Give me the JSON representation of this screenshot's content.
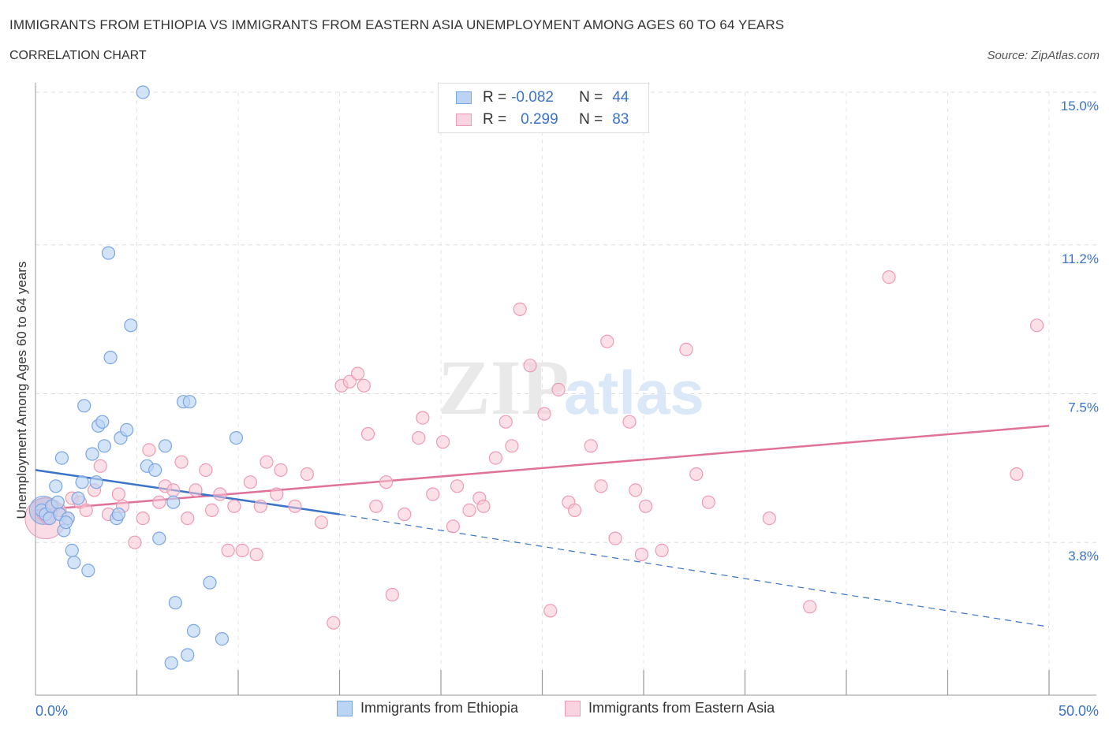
{
  "header": {
    "title": "IMMIGRANTS FROM ETHIOPIA VS IMMIGRANTS FROM EASTERN ASIA UNEMPLOYMENT AMONG AGES 60 TO 64 YEARS",
    "subtitle": "CORRELATION CHART",
    "source": "Source: ZipAtlas.com"
  },
  "legend": {
    "rows": [
      {
        "r_label": "R =",
        "r_value": "-0.082",
        "n_label": "N =",
        "n_value": "44",
        "color": "#a9c8f0"
      },
      {
        "r_label": "R =",
        "r_value": "0.299",
        "n_label": "N =",
        "n_value": "83",
        "color": "#f5b8cb"
      }
    ]
  },
  "bottom_legend": {
    "series1": "Immigrants from Ethiopia",
    "series2": "Immigrants from Eastern Asia"
  },
  "watermark": {
    "zip": "ZIP",
    "atlas": "atlas"
  },
  "chart_data": {
    "type": "scatter",
    "title": "IMMIGRANTS FROM ETHIOPIA VS IMMIGRANTS FROM EASTERN ASIA UNEMPLOYMENT AMONG AGES 60 TO 64 YEARS",
    "xlabel": "",
    "ylabel": "Unemployment Among Ages 60 to 64 years",
    "xlim": [
      0,
      50
    ],
    "ylim": [
      0,
      15
    ],
    "x_tick_labels": [
      "0.0%",
      "50.0%"
    ],
    "y_ticks": [
      3.8,
      7.5,
      11.2,
      15.0
    ],
    "y_tick_labels": [
      "3.8%",
      "7.5%",
      "11.2%",
      "15.0%"
    ],
    "grid": true,
    "colors": {
      "ethiopia": "#7aa6e3",
      "eastern_asia": "#ee9ab5",
      "ethiopia_line": "#3a73c9",
      "eastern_asia_line": "#e0729a",
      "tick_label": "#3a73c9"
    },
    "series": [
      {
        "name": "Immigrants from Ethiopia",
        "points": [
          [
            0.3,
            4.6
          ],
          [
            0.5,
            4.5
          ],
          [
            0.7,
            4.4
          ],
          [
            0.8,
            4.7
          ],
          [
            1.0,
            5.2
          ],
          [
            1.1,
            4.8
          ],
          [
            1.2,
            4.5
          ],
          [
            1.3,
            5.9
          ],
          [
            1.4,
            4.1
          ],
          [
            1.6,
            4.4
          ],
          [
            1.8,
            3.6
          ],
          [
            1.9,
            3.3
          ],
          [
            2.1,
            4.9
          ],
          [
            2.3,
            5.3
          ],
          [
            2.4,
            7.2
          ],
          [
            2.6,
            3.1
          ],
          [
            2.8,
            6.0
          ],
          [
            3.0,
            5.3
          ],
          [
            3.1,
            6.7
          ],
          [
            3.3,
            6.8
          ],
          [
            3.4,
            6.2
          ],
          [
            3.6,
            11.0
          ],
          [
            3.7,
            8.4
          ],
          [
            4.0,
            4.4
          ],
          [
            4.2,
            6.4
          ],
          [
            4.5,
            6.6
          ],
          [
            4.7,
            9.2
          ],
          [
            5.3,
            15.0
          ],
          [
            5.5,
            5.7
          ],
          [
            5.9,
            5.6
          ],
          [
            6.1,
            3.9
          ],
          [
            6.4,
            6.2
          ],
          [
            6.7,
            0.8
          ],
          [
            6.8,
            4.8
          ],
          [
            6.9,
            2.3
          ],
          [
            7.3,
            7.3
          ],
          [
            7.5,
            1.0
          ],
          [
            7.6,
            7.3
          ],
          [
            7.8,
            1.6
          ],
          [
            8.6,
            2.8
          ],
          [
            9.2,
            1.4
          ],
          [
            9.9,
            6.4
          ],
          [
            1.5,
            4.3
          ],
          [
            4.1,
            4.5
          ]
        ],
        "trend": {
          "x": [
            0,
            15
          ],
          "y": [
            5.6,
            4.5
          ]
        },
        "trend_extension": {
          "x": [
            15,
            50
          ],
          "y": [
            4.5,
            1.7
          ]
        }
      },
      {
        "name": "Immigrants from Eastern Asia",
        "points": [
          [
            0.4,
            4.5
          ],
          [
            0.6,
            4.4
          ],
          [
            0.9,
            4.7
          ],
          [
            1.2,
            4.6
          ],
          [
            1.6,
            4.4
          ],
          [
            1.8,
            4.9
          ],
          [
            2.2,
            4.8
          ],
          [
            2.5,
            4.6
          ],
          [
            2.9,
            5.1
          ],
          [
            3.2,
            5.7
          ],
          [
            3.6,
            4.5
          ],
          [
            4.1,
            5.0
          ],
          [
            4.3,
            4.7
          ],
          [
            4.9,
            3.8
          ],
          [
            5.3,
            4.4
          ],
          [
            5.6,
            6.1
          ],
          [
            6.1,
            4.8
          ],
          [
            6.4,
            5.2
          ],
          [
            6.8,
            5.1
          ],
          [
            7.2,
            5.8
          ],
          [
            7.5,
            4.4
          ],
          [
            7.9,
            5.1
          ],
          [
            8.4,
            5.6
          ],
          [
            8.7,
            4.6
          ],
          [
            9.1,
            5.0
          ],
          [
            9.5,
            3.6
          ],
          [
            9.8,
            4.7
          ],
          [
            10.2,
            3.6
          ],
          [
            10.6,
            5.3
          ],
          [
            10.9,
            3.5
          ],
          [
            11.1,
            4.7
          ],
          [
            11.4,
            5.8
          ],
          [
            11.9,
            5.0
          ],
          [
            12.1,
            5.6
          ],
          [
            12.8,
            4.7
          ],
          [
            13.4,
            5.5
          ],
          [
            14.1,
            4.3
          ],
          [
            14.7,
            1.8
          ],
          [
            15.1,
            7.7
          ],
          [
            15.5,
            7.8
          ],
          [
            15.9,
            8.0
          ],
          [
            16.2,
            7.7
          ],
          [
            16.4,
            6.5
          ],
          [
            16.8,
            4.7
          ],
          [
            17.3,
            5.3
          ],
          [
            17.6,
            2.5
          ],
          [
            18.2,
            4.5
          ],
          [
            18.9,
            6.4
          ],
          [
            19.1,
            6.9
          ],
          [
            19.6,
            5.0
          ],
          [
            20.1,
            6.3
          ],
          [
            20.6,
            4.2
          ],
          [
            20.8,
            5.2
          ],
          [
            21.4,
            4.6
          ],
          [
            21.9,
            4.9
          ],
          [
            22.1,
            4.7
          ],
          [
            22.7,
            5.9
          ],
          [
            23.2,
            6.8
          ],
          [
            23.5,
            6.2
          ],
          [
            23.9,
            9.6
          ],
          [
            24.4,
            8.2
          ],
          [
            25.1,
            7.0
          ],
          [
            25.4,
            2.1
          ],
          [
            25.8,
            7.6
          ],
          [
            26.3,
            4.8
          ],
          [
            26.6,
            4.6
          ],
          [
            27.4,
            6.2
          ],
          [
            27.9,
            5.2
          ],
          [
            28.2,
            8.8
          ],
          [
            28.6,
            3.9
          ],
          [
            29.3,
            6.8
          ],
          [
            29.6,
            5.1
          ],
          [
            29.9,
            3.5
          ],
          [
            30.1,
            4.7
          ],
          [
            30.9,
            3.6
          ],
          [
            32.1,
            8.6
          ],
          [
            32.6,
            5.5
          ],
          [
            33.2,
            4.8
          ],
          [
            36.2,
            4.4
          ],
          [
            38.2,
            2.2
          ],
          [
            42.1,
            10.4
          ],
          [
            48.4,
            5.5
          ],
          [
            49.4,
            9.2
          ]
        ],
        "trend": {
          "x": [
            0,
            50
          ],
          "y": [
            4.6,
            6.7
          ]
        }
      }
    ]
  }
}
